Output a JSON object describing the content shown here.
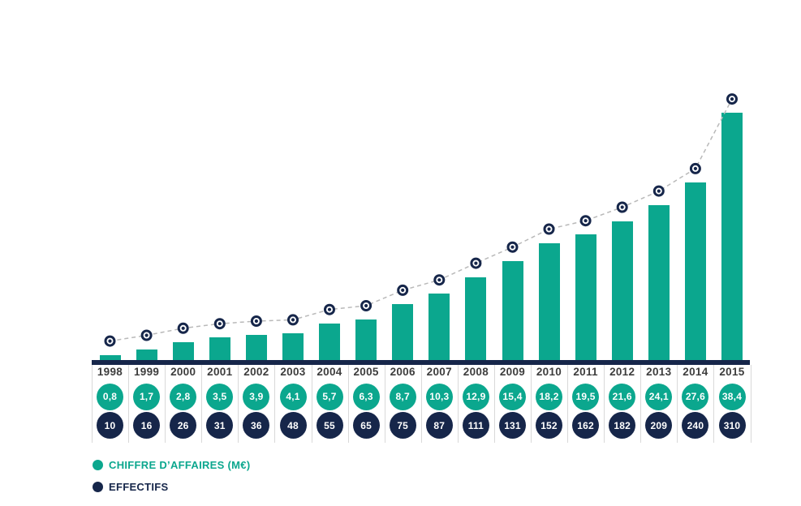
{
  "colors": {
    "revenue_teal": "#0ba78e",
    "effectifs_navy": "#16264a",
    "dashed_line_gray": "#b9b9b9",
    "separator_gray": "#d9d9d9",
    "year_text": "#3d3d3d",
    "background": "#ffffff"
  },
  "legend": {
    "revenue": "CHIFFRE D’AFFAIRES (M€)",
    "effectifs": "EFFECTIFS"
  },
  "chart_data": {
    "type": "bar",
    "title": "",
    "xlabel": "",
    "ylabel": "",
    "grid": false,
    "legend_position": "bottom-left",
    "ylim": [
      0,
      40
    ],
    "categories": [
      "1998",
      "1999",
      "2000",
      "2001",
      "2002",
      "2003",
      "2004",
      "2005",
      "2006",
      "2007",
      "2008",
      "2009",
      "2010",
      "2011",
      "2012",
      "2013",
      "2014",
      "2015"
    ],
    "series": [
      {
        "name": "CHIFFRE D’AFFAIRES (M€)",
        "type": "bar",
        "color": "#0ba78e",
        "values": [
          0.8,
          1.7,
          2.8,
          3.5,
          3.9,
          4.1,
          5.7,
          6.3,
          8.7,
          10.3,
          12.9,
          15.4,
          18.2,
          19.5,
          21.6,
          24.1,
          27.6,
          38.4
        ],
        "display_labels": [
          "0,8",
          "1,7",
          "2,8",
          "3,5",
          "3,9",
          "4,1",
          "5,7",
          "6,3",
          "8,7",
          "10,3",
          "12,9",
          "15,4",
          "18,2",
          "19,5",
          "21,6",
          "24,1",
          "27,6",
          "38,4"
        ]
      },
      {
        "name": "EFFECTIFS",
        "type": "line-markers",
        "color": "#16264a",
        "values": [
          10,
          16,
          26,
          31,
          36,
          48,
          55,
          65,
          75,
          87,
          111,
          131,
          152,
          162,
          182,
          209,
          240,
          310
        ],
        "display_labels": [
          "10",
          "16",
          "26",
          "31",
          "36",
          "48",
          "55",
          "65",
          "75",
          "87",
          "111",
          "131",
          "152",
          "162",
          "182",
          "209",
          "240",
          "310"
        ]
      }
    ]
  }
}
